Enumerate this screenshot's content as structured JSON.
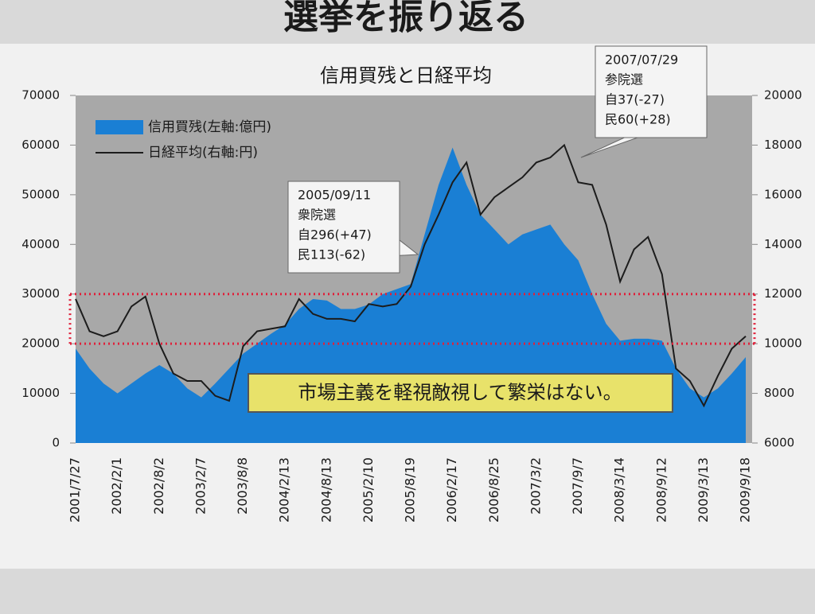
{
  "page_title": "選挙を振り返る",
  "chart_data": {
    "type": "area-line",
    "title": "信用買残と日経平均",
    "categories": [
      "2001/7/27",
      null,
      null,
      "2002/2/1",
      null,
      null,
      "2002/8/2",
      null,
      null,
      "2003/2/7",
      null,
      null,
      "2003/8/8",
      null,
      null,
      "2004/2/13",
      null,
      null,
      "2004/8/13",
      null,
      null,
      "2005/2/10",
      null,
      null,
      "2005/8/19",
      null,
      null,
      "2006/2/17",
      null,
      null,
      "2006/8/25",
      null,
      null,
      "2007/3/2",
      null,
      null,
      "2007/9/7",
      null,
      null,
      "2008/3/14",
      null,
      null,
      "2008/9/12",
      null,
      null,
      "2009/3/13",
      null,
      null,
      "2009/9/18"
    ],
    "series": [
      {
        "name": "信用買残(左軸:億円)",
        "color": "#1a7fd4",
        "kind": "area",
        "axis": "y",
        "values": [
          19000,
          15000,
          12000,
          10000,
          12000,
          14000,
          15700,
          14000,
          11000,
          9200,
          12000,
          15000,
          18000,
          20000,
          22000,
          23800,
          27000,
          29000,
          28700,
          27000,
          27000,
          27900,
          30000,
          31000,
          32000,
          42000,
          52000,
          59500,
          52000,
          46000,
          43000,
          40000,
          42000,
          43000,
          44000,
          40000,
          36800,
          30000,
          24000,
          20600,
          21000,
          21000,
          20600,
          15000,
          11000,
          9200,
          11000,
          14000,
          17300
        ]
      },
      {
        "name": "日経平均(右軸:円)",
        "color": "#1c1c1c",
        "kind": "line",
        "axis": "y2",
        "values": [
          11800,
          10500,
          10300,
          10500,
          11500,
          11900,
          10000,
          8800,
          8500,
          8500,
          7900,
          7700,
          9900,
          10500,
          10600,
          10700,
          11800,
          11200,
          11000,
          11000,
          10900,
          11600,
          11500,
          11600,
          12300,
          14000,
          15200,
          16500,
          17300,
          15200,
          15900,
          16300,
          16700,
          17300,
          17500,
          18000,
          16500,
          16400,
          14800,
          12500,
          13800,
          14300,
          12800,
          9000,
          8500,
          7500,
          8700,
          9800,
          10300
        ]
      }
    ],
    "ylim": [
      0,
      70000
    ],
    "yticks": [
      0,
      10000,
      20000,
      30000,
      40000,
      50000,
      60000,
      70000
    ],
    "y2lim": [
      6000,
      20000
    ],
    "y2ticks": [
      6000,
      8000,
      10000,
      12000,
      14000,
      16000,
      18000,
      20000
    ],
    "reference_band": {
      "axis": "y2",
      "values": [
        10000,
        12000
      ],
      "color": "#e0203a"
    },
    "legend": "upper left",
    "annotations": [
      {
        "at": 24,
        "lines": [
          "2005/09/11",
          "衆院選",
          "自296(+47)",
          "民113(-62)"
        ],
        "highlight_line": 2
      },
      {
        "at": 36,
        "lines": [
          "2007/07/29",
          "参院選",
          "自37(-27)",
          "民60(+28)"
        ],
        "highlight_line": 3
      }
    ],
    "banner": "市場主義を軽視敵視して繁栄はない。",
    "highlight_color": "#e0101a"
  }
}
